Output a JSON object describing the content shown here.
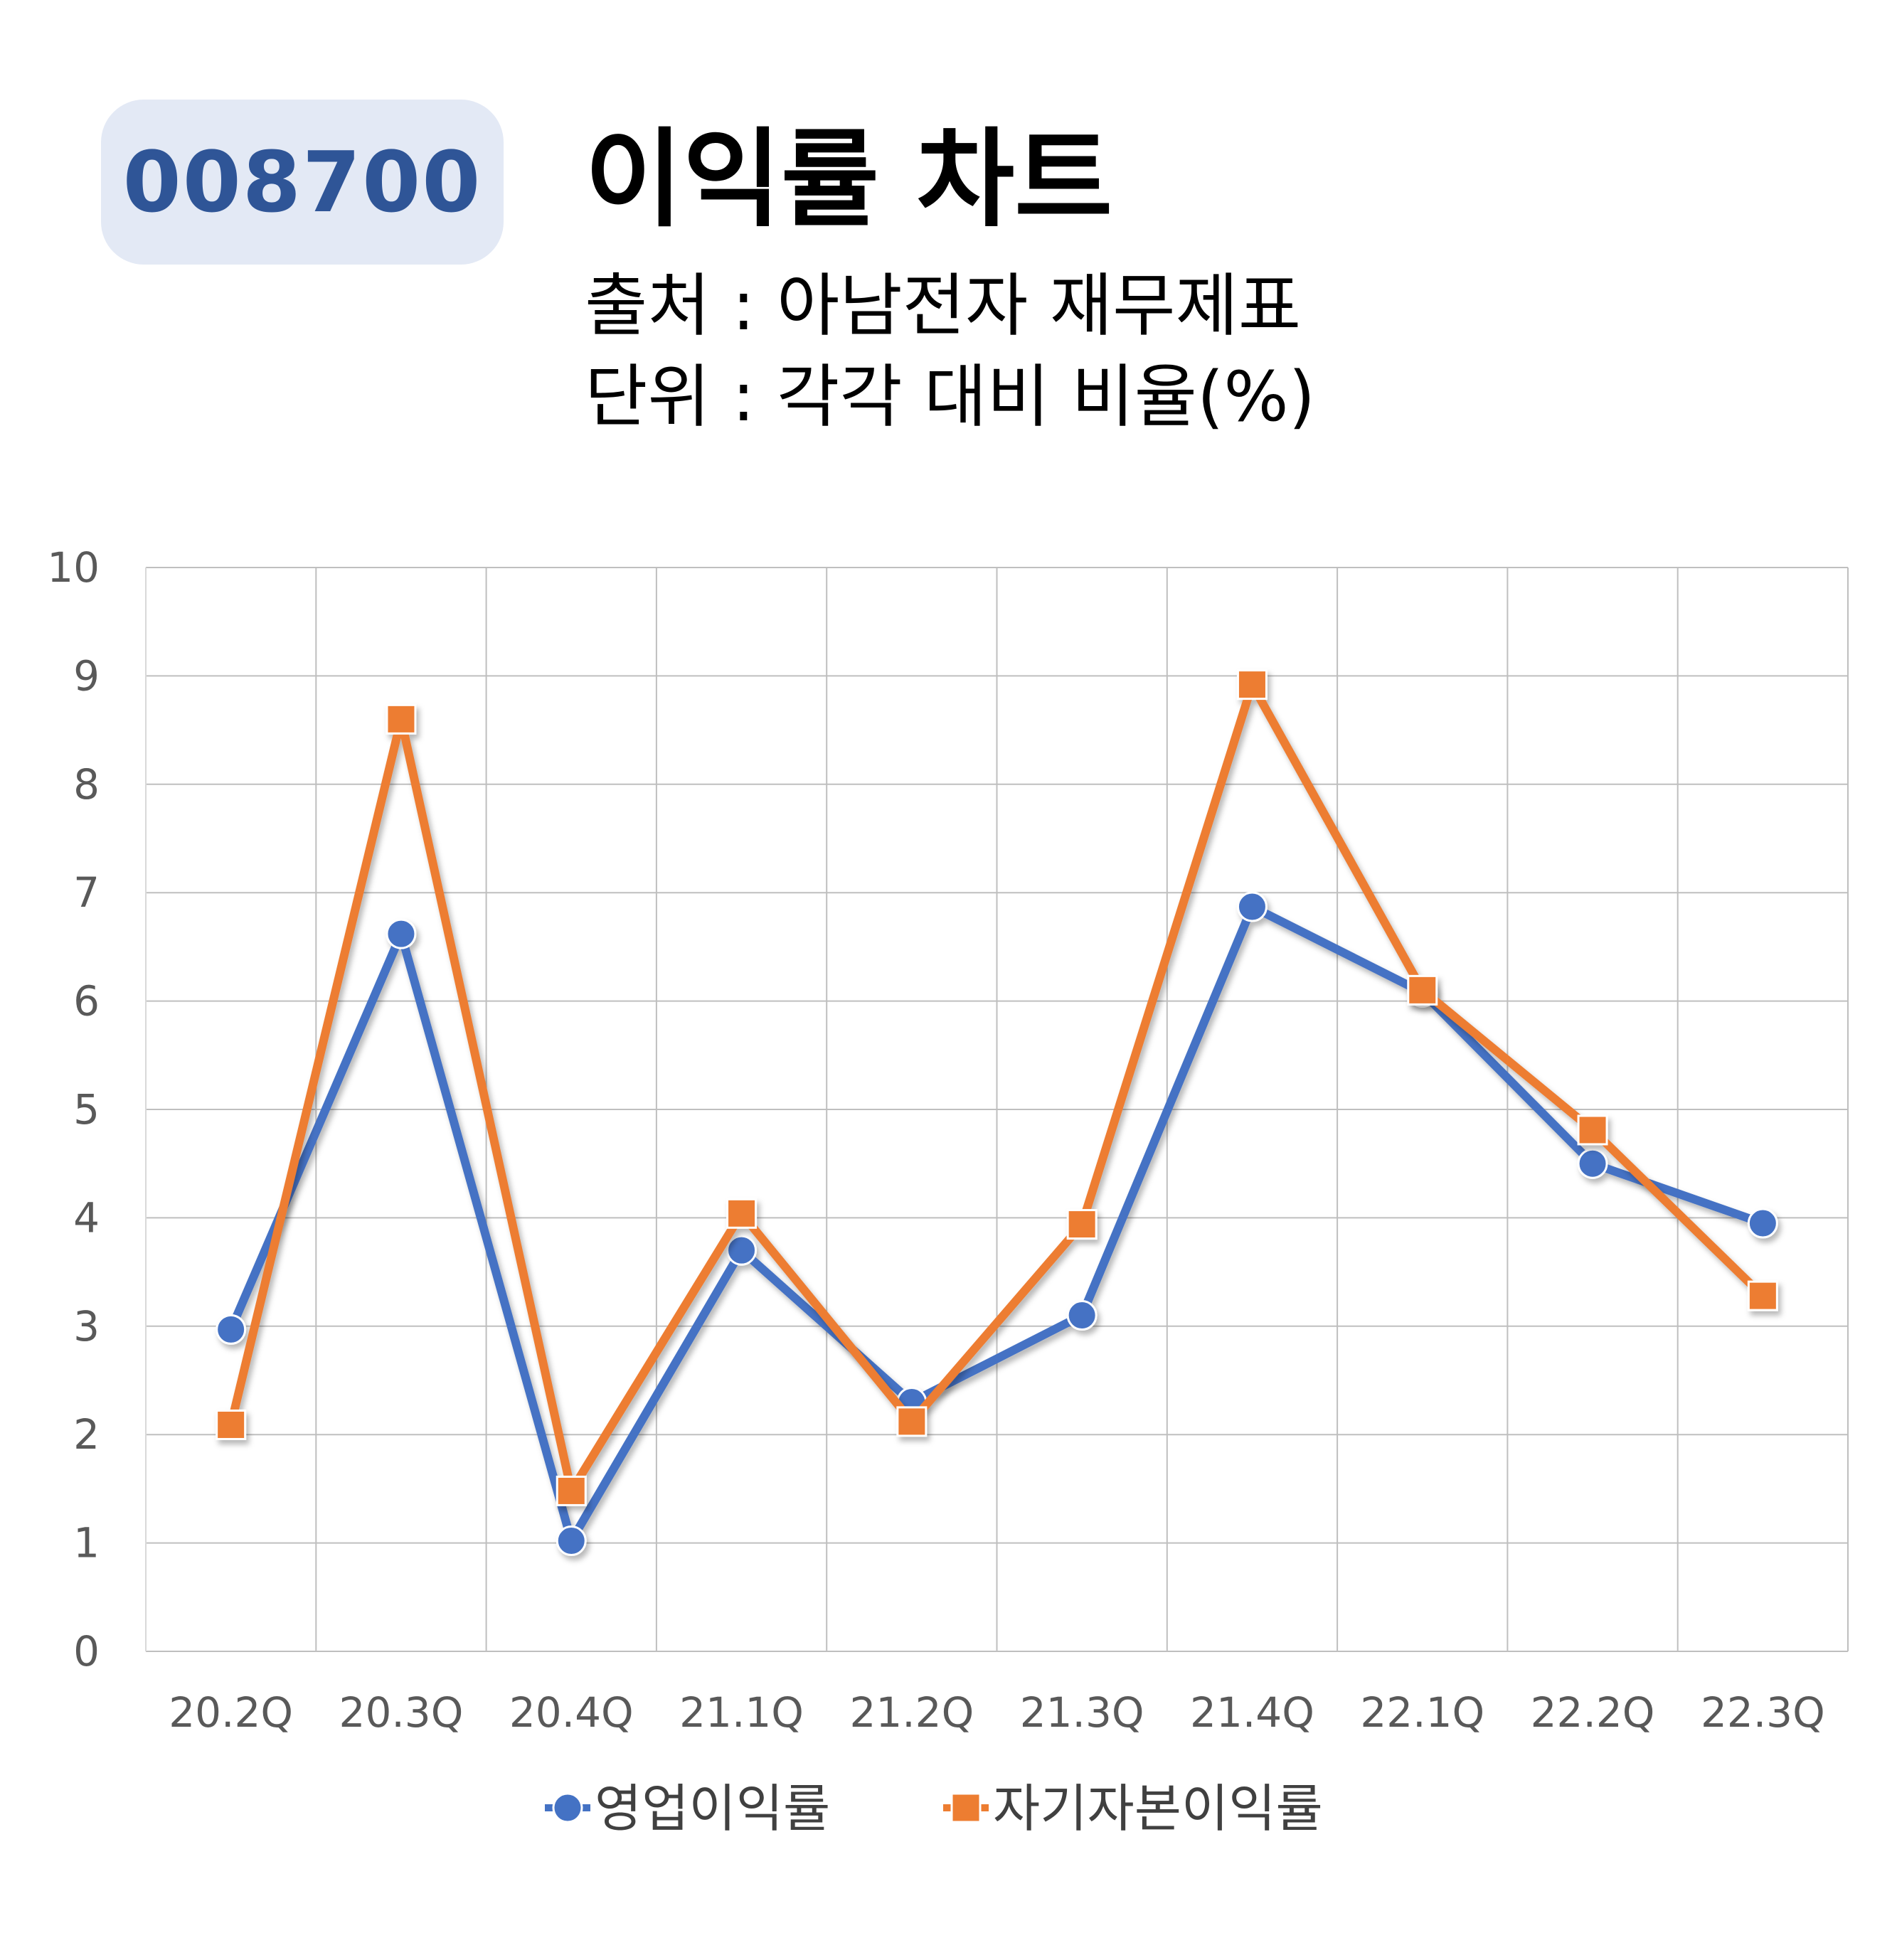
{
  "header": {
    "ticker": "008700",
    "title": "이익률 차트",
    "source": "출처 : 아남전자 재무제표",
    "unit": "단위 : 각각 대비 비율(%)"
  },
  "chart_data": {
    "type": "line",
    "categories": [
      "20.2Q",
      "20.3Q",
      "20.4Q",
      "21.1Q",
      "21.2Q",
      "21.3Q",
      "21.4Q",
      "22.1Q",
      "22.2Q",
      "22.3Q"
    ],
    "ylim": [
      0,
      10
    ],
    "yticks": [
      "0",
      "1",
      "2",
      "3",
      "4",
      "5",
      "6",
      "7",
      "8",
      "9",
      "10"
    ],
    "grid": true,
    "legend_position": "bottom",
    "series": [
      {
        "name": "영업이익률",
        "marker": "circle",
        "color": "#4472c4",
        "values": [
          2.97,
          6.62,
          1.02,
          3.7,
          2.3,
          3.1,
          6.87,
          6.08,
          4.5,
          3.95
        ]
      },
      {
        "name": "자기자본이익률",
        "marker": "square",
        "color": "#ed7d31",
        "values": [
          2.09,
          8.6,
          1.48,
          4.04,
          2.12,
          3.94,
          8.92,
          6.1,
          4.81,
          3.28
        ]
      }
    ]
  }
}
